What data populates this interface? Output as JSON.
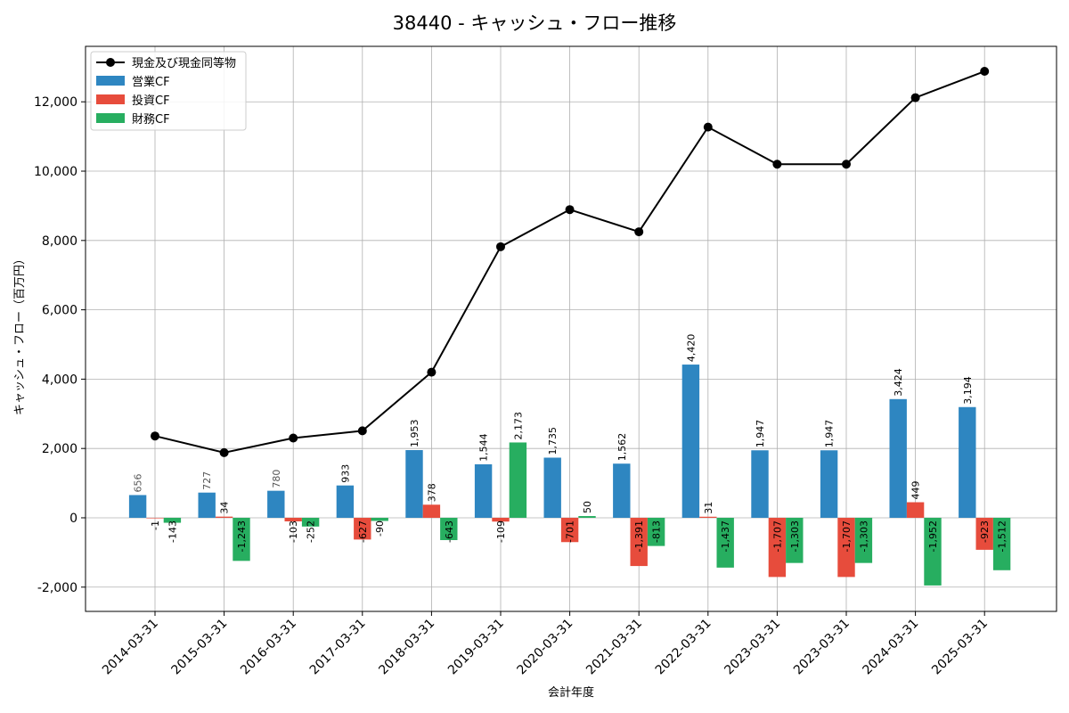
{
  "chart_data": {
    "type": "bar+line",
    "title": "38440 - キャッシュ・フロー推移",
    "xlabel": "会計年度",
    "ylabel": "キャッシュ・フロー（百万円）",
    "ylim": [
      -2700,
      13600
    ],
    "yticks": [
      -2000,
      0,
      2000,
      4000,
      6000,
      8000,
      10000,
      12000
    ],
    "ytick_labels": [
      "-2,000",
      "0",
      "2,000",
      "4,000",
      "6,000",
      "8,000",
      "10,000",
      "12,000"
    ],
    "grid": true,
    "legend_position": "top-left",
    "categories": [
      "2014-03-31",
      "2015-03-31",
      "2016-03-31",
      "2017-03-31",
      "2018-03-31",
      "2019-03-31",
      "2020-03-31",
      "2021-03-31",
      "2022-03-31",
      "2023-03-31",
      "2023-03-31",
      "2024-03-31",
      "2025-03-31"
    ],
    "series": [
      {
        "name": "営業CF",
        "kind": "bar",
        "color": "#2e86c1",
        "values": [
          656,
          727,
          780,
          933,
          1953,
          1544,
          1735,
          1562,
          4420,
          1947,
          1947,
          3424,
          3194
        ],
        "labels": [
          "656",
          "727",
          "780",
          "933",
          "1,953",
          "1,544",
          "1,735",
          "1,562",
          "4,420",
          "1,947",
          "1,947",
          "3,424",
          "3,194"
        ],
        "label_colors": [
          "#555555",
          "#555555",
          "#555555",
          "#000000",
          "#000000",
          "#000000",
          "#000000",
          "#000000",
          "#000000",
          "#000000",
          "#000000",
          "#000000",
          "#000000"
        ]
      },
      {
        "name": "投資CF",
        "kind": "bar",
        "color": "#e74c3c",
        "values": [
          -1,
          34,
          -103,
          -627,
          378,
          -109,
          -701,
          -1391,
          31,
          -1707,
          -1707,
          449,
          -923
        ],
        "labels": [
          "-1",
          "34",
          "-103",
          "-627",
          "378",
          "-109",
          "-701",
          "-1,391",
          "31",
          "-1,707",
          "-1,707",
          "449",
          "-923"
        ]
      },
      {
        "name": "財務CF",
        "kind": "bar",
        "color": "#27ae60",
        "values": [
          -143,
          -1243,
          -252,
          -90,
          -643,
          2173,
          50,
          -813,
          -1437,
          -1303,
          -1303,
          -1952,
          -1512
        ],
        "labels": [
          "-143",
          "-1,243",
          "-252",
          "-90",
          "-643",
          "2,173",
          "50",
          "-813",
          "-1,437",
          "-1,303",
          "-1,303",
          "-1,952",
          "-1,512"
        ]
      },
      {
        "name": "現金及び現金同等物",
        "kind": "line",
        "color": "#000000",
        "values": [
          2360,
          1880,
          2300,
          2510,
          4200,
          7820,
          8890,
          8250,
          11270,
          10200,
          10200,
          12120,
          12880
        ]
      }
    ]
  }
}
